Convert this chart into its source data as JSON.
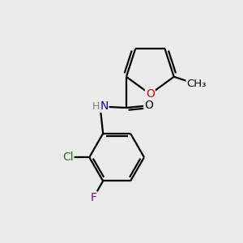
{
  "background_color": "#ebebeb",
  "bond_color": "#000000",
  "atom_colors": {
    "O_furan": "#ff0000",
    "O_carbonyl": "#000000",
    "N": "#0000cd",
    "Cl": "#1a7a1a",
    "F": "#8b008b",
    "C": "#000000",
    "H": "#808080"
  },
  "bond_width": 1.6,
  "figsize": [
    3.0,
    3.0
  ],
  "dpi": 100,
  "xlim": [
    0,
    10
  ],
  "ylim": [
    0,
    10
  ]
}
